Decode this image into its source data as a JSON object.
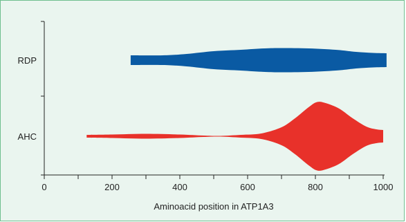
{
  "chart_data": {
    "type": "violin",
    "xlabel": "Aminoacid position in ATP1A3",
    "xlim": [
      0,
      1000
    ],
    "xticks": [
      0,
      200,
      400,
      600,
      800,
      1000
    ],
    "categories": [
      "RDP",
      "AHC"
    ],
    "series": [
      {
        "name": "RDP",
        "color": "#0a5aa3",
        "profile": [
          [
            255,
            14
          ],
          [
            350,
            14
          ],
          [
            420,
            18
          ],
          [
            500,
            26
          ],
          [
            580,
            30
          ],
          [
            650,
            34
          ],
          [
            700,
            35
          ],
          [
            780,
            34
          ],
          [
            860,
            30
          ],
          [
            920,
            24
          ],
          [
            970,
            21
          ],
          [
            1010,
            20
          ]
        ]
      },
      {
        "name": "AHC",
        "color": "#e8312a",
        "profile": [
          [
            125,
            4
          ],
          [
            200,
            5
          ],
          [
            300,
            7
          ],
          [
            400,
            5
          ],
          [
            470,
            2
          ],
          [
            520,
            1
          ],
          [
            580,
            4
          ],
          [
            640,
            8
          ],
          [
            700,
            26
          ],
          [
            740,
            52
          ],
          [
            780,
            84
          ],
          [
            805,
            99
          ],
          [
            830,
            96
          ],
          [
            870,
            80
          ],
          [
            910,
            52
          ],
          [
            950,
            28
          ],
          [
            980,
            20
          ],
          [
            1000,
            18
          ]
        ]
      }
    ]
  }
}
